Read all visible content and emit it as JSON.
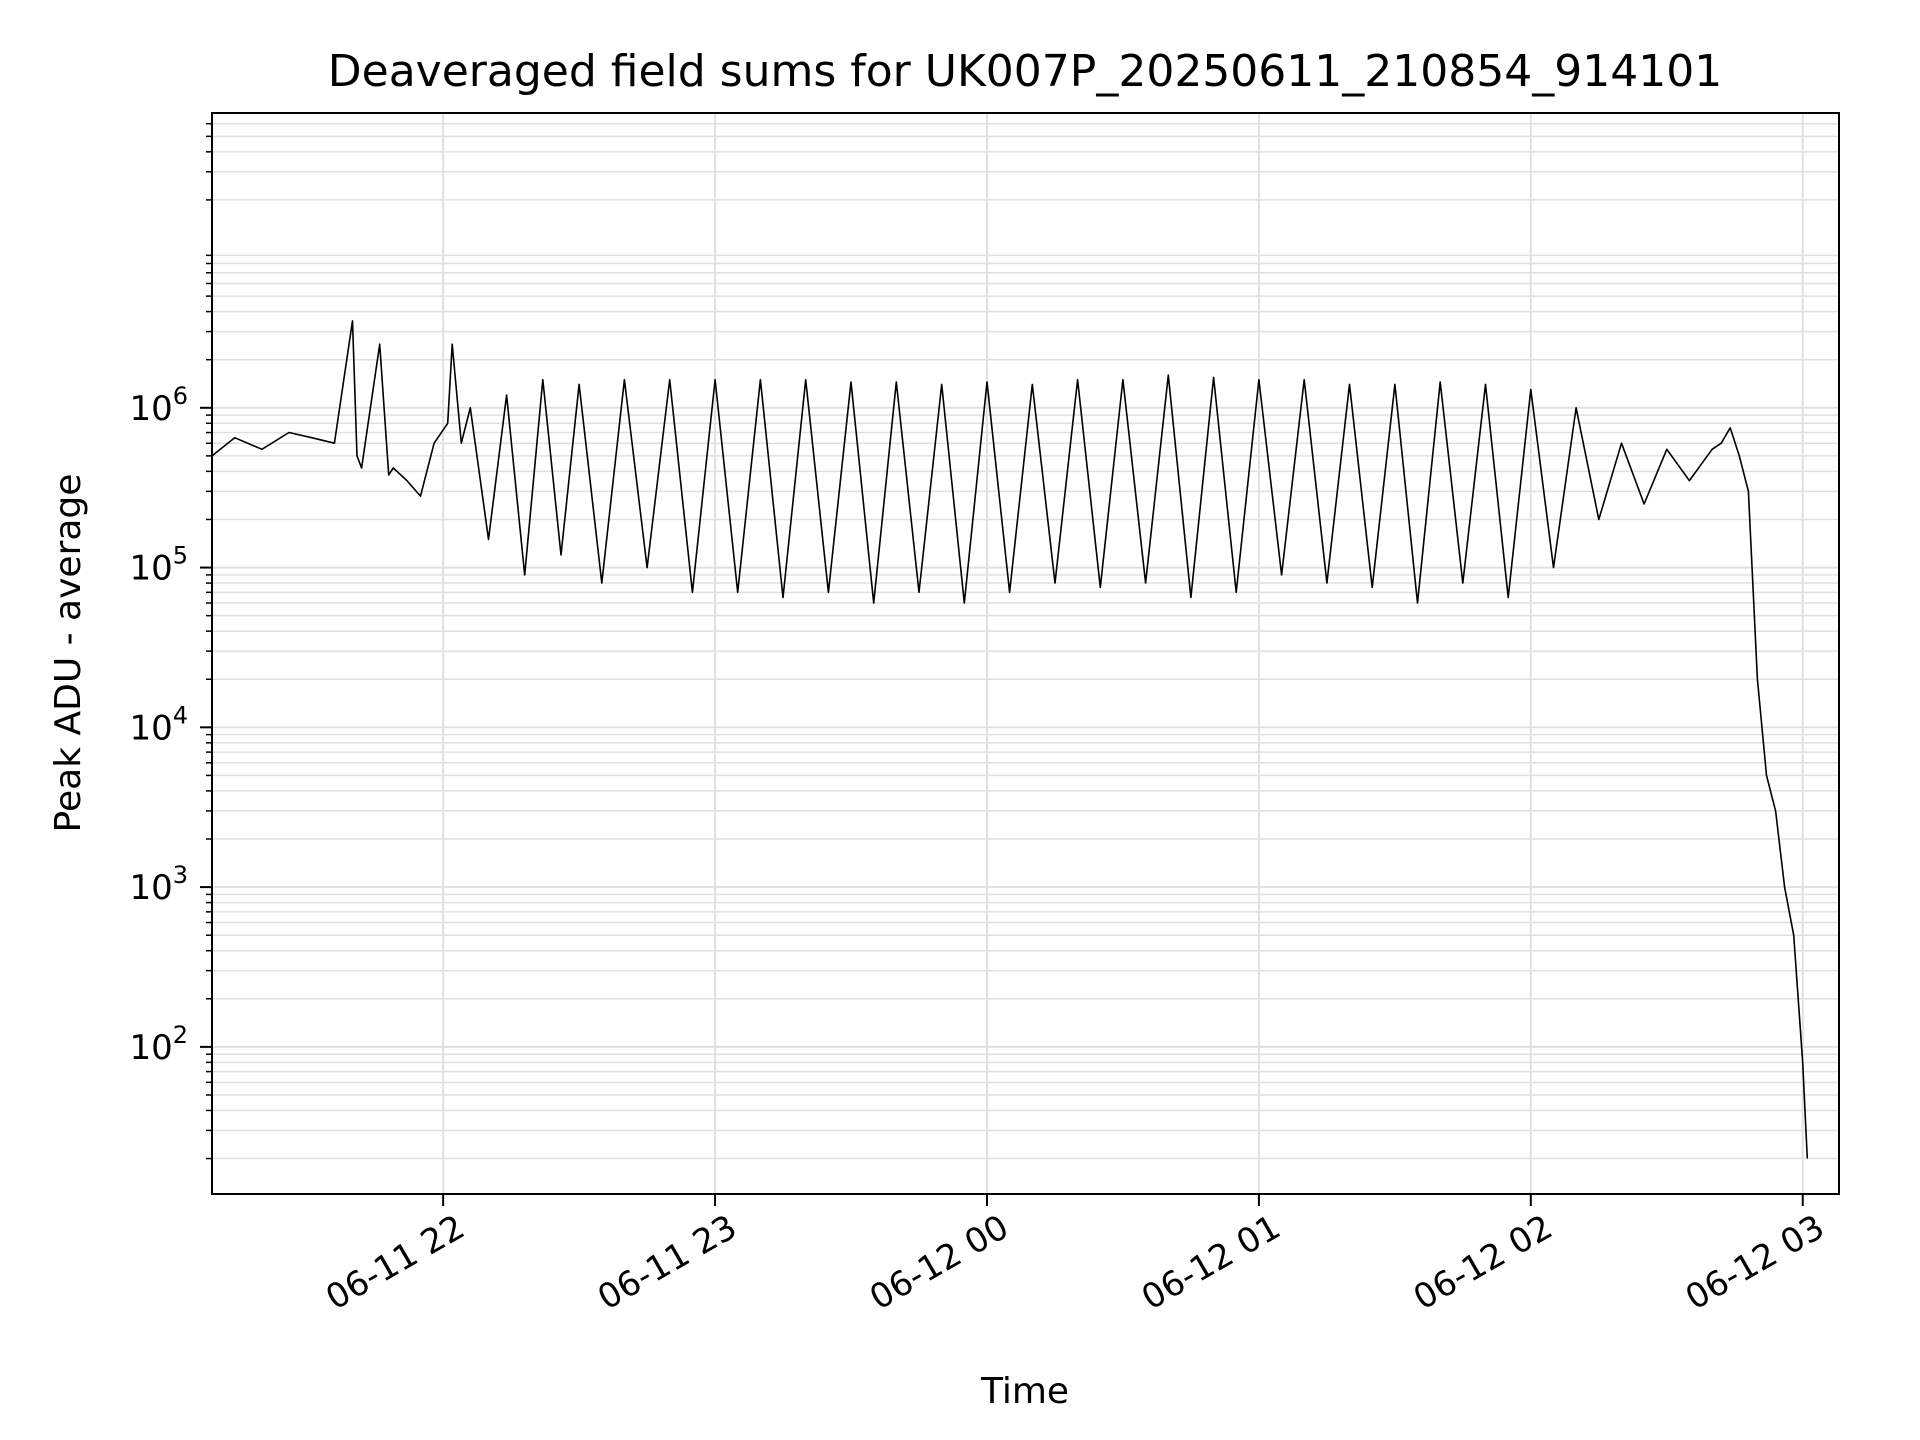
{
  "chart_data": {
    "type": "line",
    "title": "Deaveraged field sums for UK007P_20250611_210854_914101",
    "xlabel": "Time",
    "ylabel": "Peak ADU - average",
    "yscale": "log",
    "grid": true,
    "line_color": "#000000",
    "grid_color": "#e0e0e0",
    "xlim": [
      "2025-06-11 21:09",
      "2025-06-12 03:08"
    ],
    "ylim": [
      12,
      70000000
    ],
    "x_ticks": [
      "2025-06-11 22:00",
      "2025-06-11 23:00",
      "2025-06-12 00:00",
      "2025-06-12 01:00",
      "2025-06-12 02:00",
      "2025-06-12 03:00"
    ],
    "x_tick_labels": [
      "06-11 22",
      "06-11 23",
      "06-12 00",
      "06-12 01",
      "06-12 02",
      "06-12 03"
    ],
    "y_ticks": [
      100,
      1000,
      10000,
      100000,
      1000000
    ],
    "y_tick_labels": [
      {
        "base": "10",
        "exp": "2"
      },
      {
        "base": "10",
        "exp": "3"
      },
      {
        "base": "10",
        "exp": "4"
      },
      {
        "base": "10",
        "exp": "5"
      },
      {
        "base": "10",
        "exp": "6"
      }
    ],
    "series": [
      {
        "x": [
          "2025-06-11 21:09",
          "2025-06-11 21:14",
          "2025-06-11 21:20",
          "2025-06-11 21:26",
          "2025-06-11 21:31",
          "2025-06-11 21:36",
          "2025-06-11 21:40",
          "2025-06-11 21:41",
          "2025-06-11 21:42",
          "2025-06-11 21:46",
          "2025-06-11 21:48",
          "2025-06-11 21:49",
          "2025-06-11 21:52",
          "2025-06-11 21:55",
          "2025-06-11 21:58",
          "2025-06-11 22:01",
          "2025-06-11 22:02",
          "2025-06-11 22:04",
          "2025-06-11 22:06",
          "2025-06-11 22:10",
          "2025-06-11 22:14",
          "2025-06-11 22:18",
          "2025-06-11 22:22",
          "2025-06-11 22:26",
          "2025-06-11 22:30",
          "2025-06-11 22:35",
          "2025-06-11 22:40",
          "2025-06-11 22:45",
          "2025-06-11 22:50",
          "2025-06-11 22:55",
          "2025-06-11 23:00",
          "2025-06-11 23:05",
          "2025-06-11 23:10",
          "2025-06-11 23:15",
          "2025-06-11 23:20",
          "2025-06-11 23:25",
          "2025-06-11 23:30",
          "2025-06-11 23:35",
          "2025-06-11 23:40",
          "2025-06-11 23:45",
          "2025-06-11 23:50",
          "2025-06-11 23:55",
          "2025-06-12 00:00",
          "2025-06-12 00:05",
          "2025-06-12 00:10",
          "2025-06-12 00:15",
          "2025-06-12 00:20",
          "2025-06-12 00:25",
          "2025-06-12 00:30",
          "2025-06-12 00:35",
          "2025-06-12 00:40",
          "2025-06-12 00:45",
          "2025-06-12 00:50",
          "2025-06-12 00:55",
          "2025-06-12 01:00",
          "2025-06-12 01:05",
          "2025-06-12 01:10",
          "2025-06-12 01:15",
          "2025-06-12 01:20",
          "2025-06-12 01:25",
          "2025-06-12 01:30",
          "2025-06-12 01:35",
          "2025-06-12 01:40",
          "2025-06-12 01:45",
          "2025-06-12 01:50",
          "2025-06-12 01:55",
          "2025-06-12 02:00",
          "2025-06-12 02:05",
          "2025-06-12 02:10",
          "2025-06-12 02:15",
          "2025-06-12 02:20",
          "2025-06-12 02:25",
          "2025-06-12 02:30",
          "2025-06-12 02:35",
          "2025-06-12 02:40",
          "2025-06-12 02:42",
          "2025-06-12 02:44",
          "2025-06-12 02:46",
          "2025-06-12 02:48",
          "2025-06-12 02:50",
          "2025-06-12 02:52",
          "2025-06-12 02:54",
          "2025-06-12 02:56",
          "2025-06-12 02:58",
          "2025-06-12 02:59",
          "2025-06-12 03:00",
          "2025-06-12 03:01"
        ],
        "y": [
          500000,
          650000,
          550000,
          700000,
          650000,
          600000,
          3500000,
          500000,
          420000,
          2500000,
          380000,
          420000,
          350000,
          280000,
          600000,
          800000,
          2500000,
          600000,
          1000000,
          150000,
          1200000,
          90000,
          1500000,
          120000,
          1400000,
          80000,
          1500000,
          100000,
          1500000,
          70000,
          1500000,
          70000,
          1500000,
          65000,
          1500000,
          70000,
          1450000,
          60000,
          1450000,
          70000,
          1400000,
          60000,
          1450000,
          70000,
          1400000,
          80000,
          1500000,
          75000,
          1500000,
          80000,
          1600000,
          65000,
          1550000,
          70000,
          1500000,
          90000,
          1500000,
          80000,
          1400000,
          75000,
          1400000,
          60000,
          1450000,
          80000,
          1400000,
          65000,
          1300000,
          100000,
          1000000,
          200000,
          600000,
          250000,
          550000,
          350000,
          550000,
          600000,
          750000,
          500000,
          300000,
          20000,
          5000,
          3000,
          1000,
          500,
          200,
          80,
          20
        ]
      }
    ]
  }
}
